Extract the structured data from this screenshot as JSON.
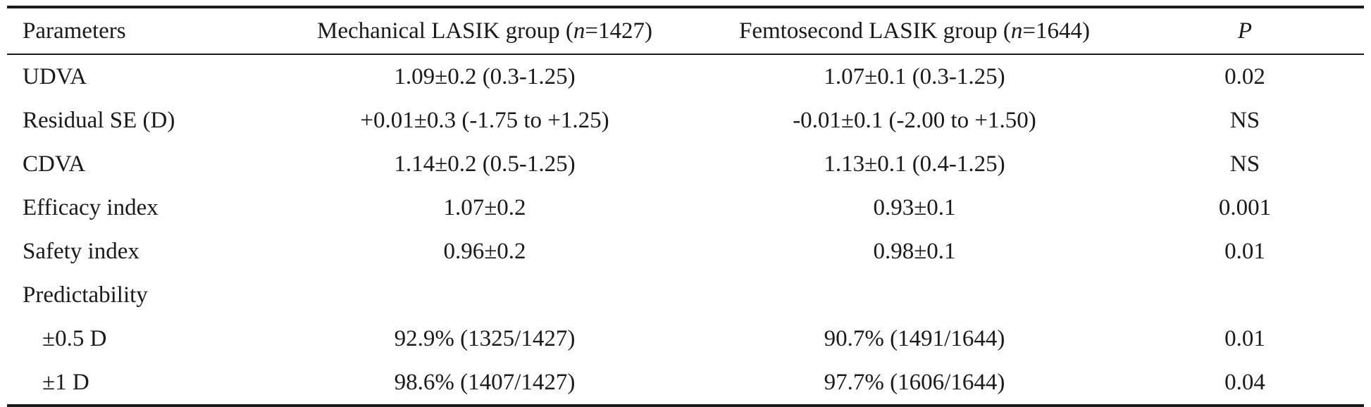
{
  "table": {
    "headers": {
      "parameters": "Parameters",
      "mechanical": {
        "pre": "Mechanical LASIK group (",
        "n": "n",
        "post": "=1427)"
      },
      "femtosecond": {
        "pre": "Femtosecond LASIK group (",
        "n": "n",
        "post": "=1644)"
      },
      "p": "P"
    },
    "rows": [
      {
        "parameter": "UDVA",
        "mechanical": "1.09±0.2 (0.3-1.25)",
        "femtosecond": "1.07±0.1 (0.3-1.25)",
        "p": "0.02"
      },
      {
        "parameter": "Residual SE (D)",
        "mechanical": "+0.01±0.3 (-1.75 to +1.25)",
        "femtosecond": "-0.01±0.1 (-2.00 to +1.50)",
        "p": "NS"
      },
      {
        "parameter": "CDVA",
        "mechanical": "1.14±0.2 (0.5-1.25)",
        "femtosecond": "1.13±0.1 (0.4-1.25)",
        "p": "NS"
      },
      {
        "parameter": "Efficacy index",
        "mechanical": "1.07±0.2",
        "femtosecond": "0.93±0.1",
        "p": "0.001"
      },
      {
        "parameter": "Safety index",
        "mechanical": "0.96±0.2",
        "femtosecond": "0.98±0.1",
        "p": "0.01"
      },
      {
        "parameter": "Predictability",
        "mechanical": "",
        "femtosecond": "",
        "p": ""
      },
      {
        "parameter": "±0.5 D",
        "mechanical": "92.9% (1325/1427)",
        "femtosecond": "90.7% (1491/1644)",
        "p": "0.01"
      },
      {
        "parameter": "±1 D",
        "mechanical": "98.6% (1407/1427)",
        "femtosecond": "97.7% (1606/1644)",
        "p": "0.04"
      }
    ]
  }
}
